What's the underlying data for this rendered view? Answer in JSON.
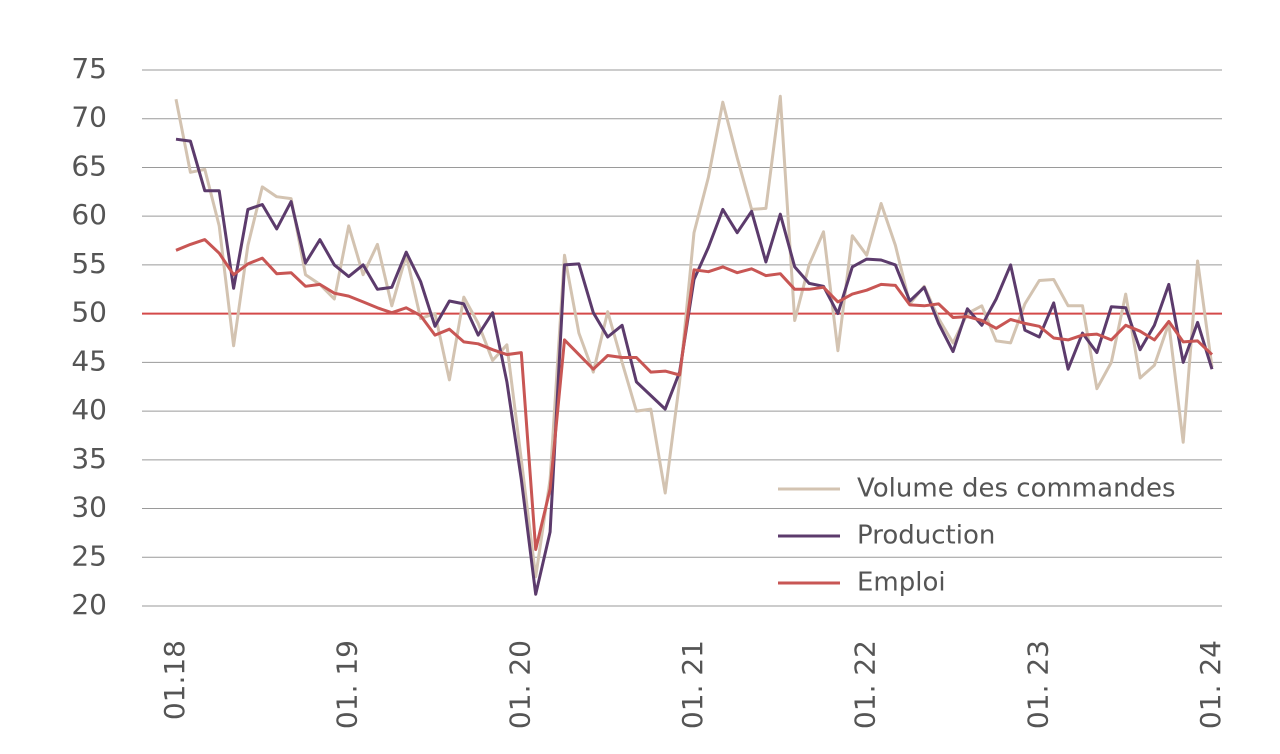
{
  "chart_data": {
    "type": "line",
    "categories": [
      "01.18",
      null,
      null,
      null,
      null,
      null,
      null,
      null,
      null,
      null,
      null,
      null,
      "01. 19",
      null,
      null,
      null,
      null,
      null,
      null,
      null,
      null,
      null,
      null,
      null,
      "01. 20",
      null,
      null,
      null,
      null,
      null,
      null,
      null,
      null,
      null,
      null,
      null,
      "01. 21",
      null,
      null,
      null,
      null,
      null,
      null,
      null,
      null,
      null,
      null,
      null,
      "01. 22",
      null,
      null,
      null,
      null,
      null,
      null,
      null,
      null,
      null,
      null,
      null,
      "01. 23",
      null,
      null,
      null,
      null,
      null,
      null,
      null,
      null,
      null,
      null,
      null,
      "01. 24"
    ],
    "series": [
      {
        "name": "Volume des commandes",
        "color": "#d3c3b1",
        "values": [
          72,
          64.5,
          64.8,
          59,
          46.7,
          57,
          63,
          62,
          61.8,
          54,
          53,
          51.5,
          59,
          54,
          57.1,
          50.8,
          56,
          49.5,
          50,
          43.2,
          51.7,
          49,
          45.2,
          46.8,
          35,
          23,
          33,
          56,
          48,
          44,
          50.2,
          45,
          40,
          40.2,
          31.6,
          43,
          58.3,
          64,
          71.7,
          66,
          60.7,
          60.8,
          72.3,
          49.3,
          55,
          58.4,
          46.2,
          58,
          56,
          61.3,
          57,
          51,
          52.8,
          49.5,
          47,
          50,
          50.8,
          47.2,
          47,
          51,
          53.4,
          53.5,
          50.8,
          50.8,
          42.3,
          45,
          52,
          43.4,
          44.7,
          49,
          36.8,
          55.4,
          44.5
        ]
      },
      {
        "name": "Production",
        "color": "#5c3b6c",
        "values": [
          67.9,
          67.7,
          62.6,
          62.6,
          52.6,
          60.7,
          61.2,
          58.7,
          61.5,
          55.2,
          57.6,
          55,
          53.8,
          55,
          52.5,
          52.7,
          56.3,
          53.3,
          48.7,
          51.3,
          51,
          47.8,
          50.1,
          43,
          33,
          21.2,
          27.6,
          55,
          55.1,
          50.1,
          47.6,
          48.8,
          43,
          41.6,
          40.2,
          44,
          53.5,
          56.8,
          60.7,
          58.3,
          60.5,
          55.3,
          60.2,
          54.8,
          53.1,
          52.8,
          50,
          54.8,
          55.6,
          55.5,
          55,
          51.3,
          52.7,
          49,
          46.1,
          50.5,
          48.8,
          51.5,
          55,
          48.3,
          47.6,
          51.1,
          44.3,
          48,
          46,
          50.7,
          50.6,
          46.3,
          48.8,
          53,
          45,
          49.1,
          44.3
        ]
      },
      {
        "name": "Emploi",
        "color": "#c85654",
        "values": [
          56.5,
          57.1,
          57.6,
          56.2,
          54,
          55.1,
          55.7,
          54.1,
          54.2,
          52.8,
          53,
          52.1,
          51.8,
          51.2,
          50.6,
          50.1,
          50.6,
          49.8,
          47.8,
          48.4,
          47.1,
          46.9,
          46.3,
          45.8,
          46,
          25.8,
          32,
          47.3,
          45.8,
          44.3,
          45.7,
          45.5,
          45.5,
          44,
          44.1,
          43.7,
          54.5,
          54.3,
          54.8,
          54.2,
          54.6,
          53.9,
          54.1,
          52.5,
          52.5,
          52.7,
          51.2,
          52,
          52.4,
          53,
          52.9,
          50.9,
          50.8,
          51,
          49.6,
          49.7,
          49.3,
          48.5,
          49.4,
          49,
          48.7,
          47.5,
          47.3,
          47.8,
          47.9,
          47.3,
          48.8,
          48.2,
          47.3,
          49.2,
          47.1,
          47.2,
          45.8
        ]
      }
    ],
    "ylim": [
      20,
      75
    ],
    "yticks": [
      20,
      25,
      30,
      35,
      40,
      45,
      50,
      55,
      60,
      65,
      70,
      75
    ],
    "grid": true,
    "reference_line": {
      "value": 50,
      "color": "#d44a4a"
    },
    "legend": "lower right"
  }
}
